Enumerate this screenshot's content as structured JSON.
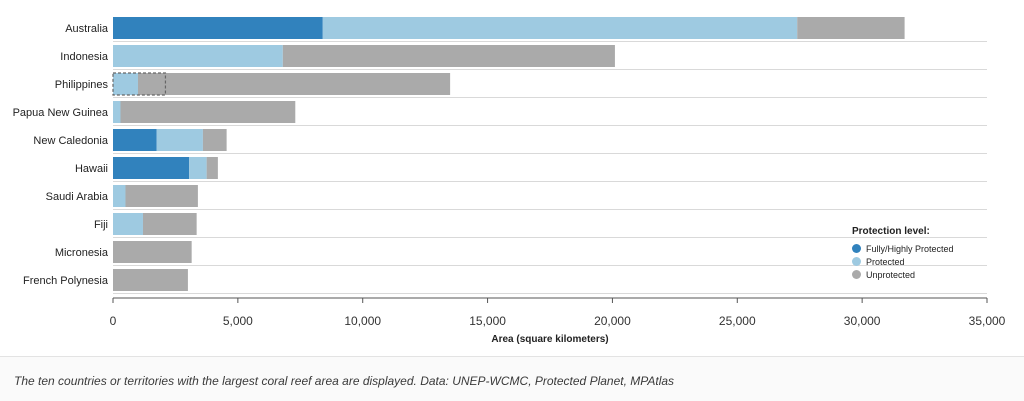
{
  "chart_data": {
    "type": "bar",
    "orientation": "horizontal",
    "stacked": true,
    "categories": [
      "Australia",
      "Indonesia",
      "Philippines",
      "Papua New Guinea",
      "New Caledonia",
      "Hawaii",
      "Saudi Arabia",
      "Fiji",
      "Micronesia",
      "French Polynesia"
    ],
    "series": [
      {
        "name": "Fully/Highly Protected",
        "color": "#3182bd",
        "values": [
          8400,
          0,
          0,
          0,
          1750,
          3050,
          0,
          0,
          0,
          0
        ]
      },
      {
        "name": "Protected",
        "color": "#9ecae1",
        "values": [
          19000,
          6800,
          1000,
          300,
          1850,
          700,
          500,
          1200,
          0,
          0
        ]
      },
      {
        "name": "Unprotected",
        "color": "#aaaaaa",
        "values": [
          4300,
          13300,
          12500,
          7000,
          950,
          450,
          2900,
          2150,
          3150,
          3000
        ]
      }
    ],
    "highlight": {
      "category": "Philippines",
      "start": 0,
      "end": 2100,
      "style": "dashed-outline"
    },
    "xlabel": "Area (square kilometers)",
    "ylabel": "",
    "xlim": [
      0,
      35000
    ],
    "xticks": [
      0,
      5000,
      10000,
      15000,
      20000,
      25000,
      30000,
      35000
    ],
    "xtick_labels": [
      "0",
      "5,000",
      "10,000",
      "15,000",
      "20,000",
      "25,000",
      "30,000",
      "35,000"
    ],
    "grid": true,
    "legend": {
      "title": "Protection level:",
      "placement": "lower-right"
    }
  },
  "caption": "The ten countries or territories with the largest coral reef area are displayed. Data: UNEP-WCMC, Protected Planet, MPAtlas"
}
